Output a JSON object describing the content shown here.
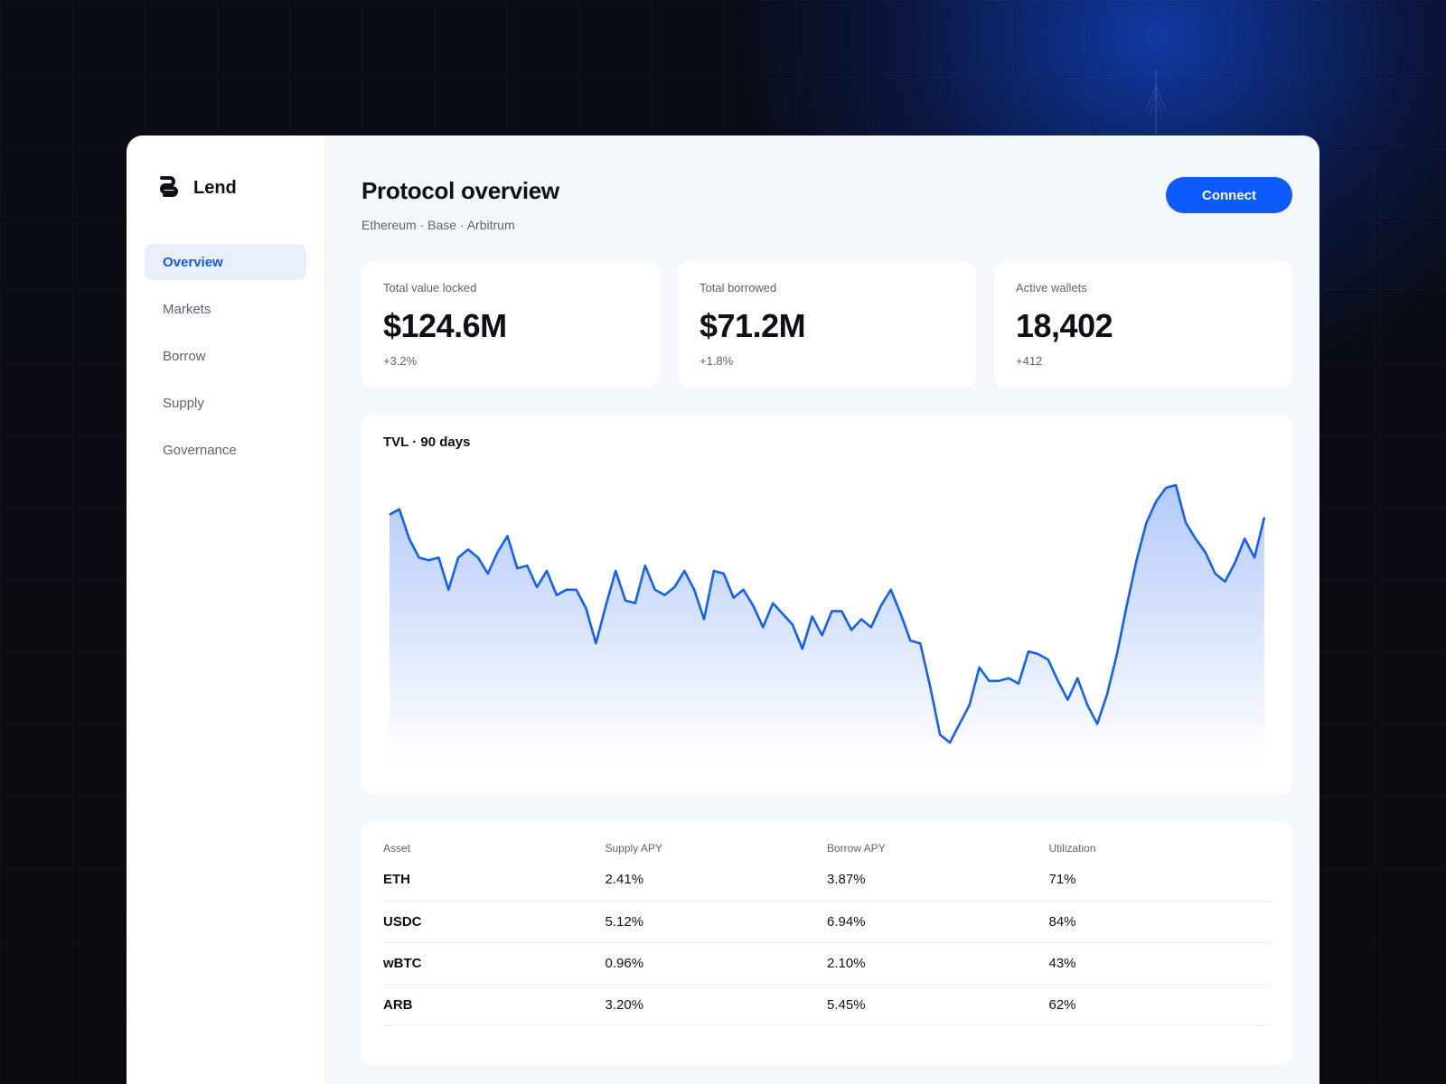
{
  "app": {
    "name": "Lend"
  },
  "sidebar": {
    "items": [
      {
        "label": "Overview",
        "active": true
      },
      {
        "label": "Markets",
        "active": false
      },
      {
        "label": "Borrow",
        "active": false
      },
      {
        "label": "Supply",
        "active": false
      },
      {
        "label": "Governance",
        "active": false
      }
    ]
  },
  "header": {
    "title": "Protocol overview",
    "networks": "Ethereum · Base · Arbitrum",
    "connect_label": "Connect"
  },
  "stats": [
    {
      "label": "Total value locked",
      "value": "$124.6M",
      "delta": "+3.2%"
    },
    {
      "label": "Total borrowed",
      "value": "$71.2M",
      "delta": "+1.8%"
    },
    {
      "label": "Active wallets",
      "value": "18,402",
      "delta": "+412"
    }
  ],
  "chart": {
    "title": "TVL · 90 days"
  },
  "chart_data": {
    "type": "area",
    "title": "TVL · 90 days",
    "xlabel": "",
    "ylabel": "",
    "grid": false,
    "values": [
      89,
      91,
      80,
      73,
      72,
      73,
      61,
      73,
      76,
      73,
      67,
      75,
      81,
      69,
      70,
      62,
      68,
      59,
      61,
      61,
      54,
      41,
      55,
      68,
      57,
      56,
      70,
      61,
      59,
      62,
      68,
      61,
      50,
      68,
      67,
      58,
      61,
      55,
      47,
      56,
      52,
      48,
      39,
      51,
      44,
      53,
      53,
      46,
      50,
      47,
      55,
      61,
      52,
      42,
      41,
      25,
      7,
      4,
      11,
      18,
      32,
      27,
      27,
      28,
      26,
      38,
      37,
      35,
      27,
      20,
      28,
      18,
      11,
      22,
      37,
      55,
      72,
      86,
      94,
      99,
      100,
      86,
      80,
      75,
      67,
      64,
      71,
      80,
      73,
      88
    ]
  },
  "table": {
    "headers": [
      "Asset",
      "Supply APY",
      "Borrow APY",
      "Utilization"
    ],
    "rows": [
      {
        "asset": "ETH",
        "supply_apy": "2.41%",
        "borrow_apy": "3.87%",
        "utilization": "71%"
      },
      {
        "asset": "USDC",
        "supply_apy": "5.12%",
        "borrow_apy": "6.94%",
        "utilization": "84%"
      },
      {
        "asset": "wBTC",
        "supply_apy": "0.96%",
        "borrow_apy": "2.10%",
        "utilization": "43%"
      },
      {
        "asset": "ARB",
        "supply_apy": "3.20%",
        "borrow_apy": "5.45%",
        "utilization": "62%"
      }
    ]
  },
  "colors": {
    "accent": "#0d5bff",
    "line": "#1460f0",
    "active_bg": "#e8f0fe"
  },
  "icons": {
    "logo": "lend-logo-icon",
    "beacon": "beacon-icon"
  }
}
